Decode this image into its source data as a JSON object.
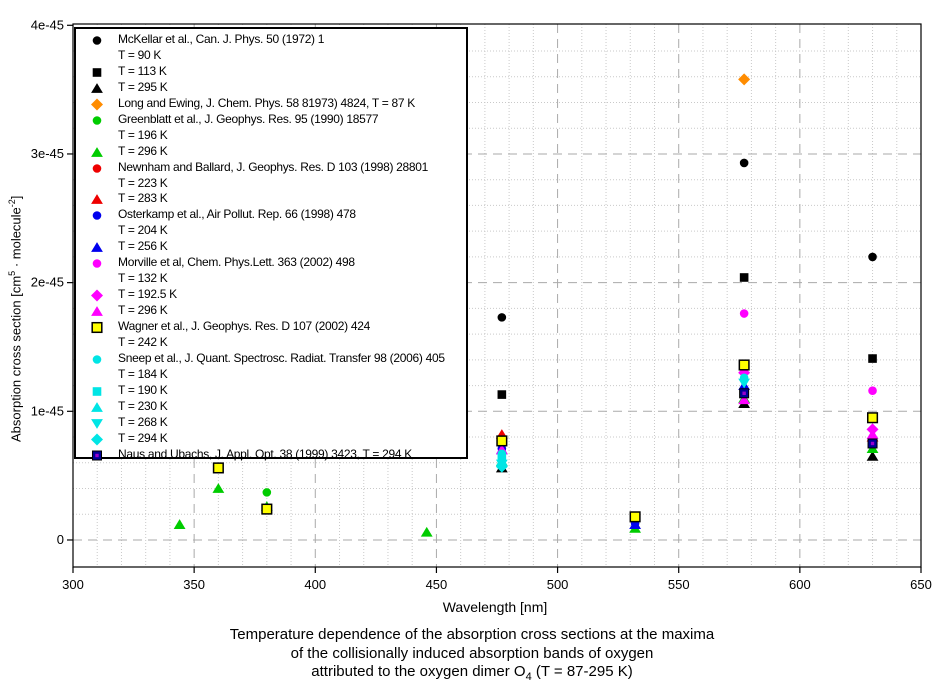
{
  "caption": {
    "line1": "Temperature dependence of the absorption cross sections at the maxima",
    "line2": "of the collisionally induced absorption bands of oxygen",
    "line3_prefix": "attributed to the oxygen dimer O",
    "line3_sub": "4",
    "line3_suffix": " (T = 87-295 K)"
  },
  "chart_data": {
    "type": "scatter",
    "title": "",
    "xlabel": "Wavelength [nm]",
    "ylabel": "Absorption cross section [cm5 · molecule-2]",
    "ylabel_parts": {
      "prefix": "Absorption cross section [cm",
      "sup1": "5",
      "mid": " · molecule",
      "sup2": "-2",
      "suffix": "]"
    },
    "x_unit": "nm",
    "y_unit_scale": "1e-45",
    "xlim": [
      300,
      650
    ],
    "ylim_e45": [
      -0.21,
      4.01
    ],
    "x_major_ticks": [
      300,
      350,
      400,
      450,
      500,
      550,
      600,
      650
    ],
    "x_minor_step": 10,
    "y_major_ticks": [
      {
        "v": 0,
        "label": "0"
      },
      {
        "v": 1,
        "label": "1e-45"
      },
      {
        "v": 2,
        "label": "2e-45"
      },
      {
        "v": 3,
        "label": "3e-45"
      },
      {
        "v": 4,
        "label": "4e-45"
      }
    ],
    "y_minor_step": 0.2,
    "grid": {
      "minor_color": "#c9c9c9",
      "major_color": "#aaaaaa"
    },
    "legend_position": "top-left",
    "series": [
      {
        "label": "McKellar et al., Can. J. Phys. 50 (1972) 1",
        "label2": "T = 90 K",
        "marker": "circle",
        "color": "#000000",
        "points": [
          [
            477,
            1.73
          ],
          [
            577,
            2.93
          ],
          [
            630,
            2.2
          ]
        ]
      },
      {
        "label": "T = 113 K",
        "marker": "square",
        "color": "#000000",
        "points": [
          [
            477,
            1.13
          ],
          [
            577,
            2.04
          ],
          [
            630,
            1.41
          ]
        ]
      },
      {
        "label": "T = 295 K",
        "marker": "triangle-up",
        "color": "#000000",
        "points": [
          [
            477,
            0.56
          ],
          [
            577,
            1.06
          ],
          [
            630,
            0.65
          ]
        ]
      },
      {
        "label": "Long and Ewing, J. Chem. Phys. 58 81973) 4824, T = 87 K",
        "marker": "diamond",
        "color": "#ff8c00",
        "points": [
          [
            577,
            3.58
          ]
        ]
      },
      {
        "label": "Greenblatt et al., J. Geophys. Res. 95 (1990) 18577",
        "label2": "T = 196 K",
        "marker": "circle",
        "color": "#00cc00",
        "points": [
          [
            380,
            0.37
          ]
        ]
      },
      {
        "label": "T = 296 K",
        "marker": "triangle-up",
        "color": "#00cc00",
        "points": [
          [
            344,
            0.12
          ],
          [
            360,
            0.4
          ],
          [
            380,
            0.26
          ],
          [
            446,
            0.06
          ],
          [
            477,
            0.61
          ],
          [
            532,
            0.09
          ],
          [
            577,
            1.1
          ],
          [
            630,
            0.71
          ]
        ]
      },
      {
        "label": "Newnham and Ballard, J. Geophys. Res. D 103 (1998) 28801",
        "label2": "T = 223 K",
        "marker": "circle",
        "color": "#ee0000",
        "points": [
          [
            577,
            1.17
          ],
          [
            630,
            0.78
          ]
        ]
      },
      {
        "label": "T = 283 K",
        "marker": "triangle-up",
        "color": "#ee0000",
        "points": [
          [
            477,
            0.82
          ],
          [
            630,
            0.8
          ]
        ]
      },
      {
        "label": "Osterkamp et al., Air Pollut. Rep. 66 (1998) 478",
        "label2": "T = 204 K",
        "marker": "circle",
        "color": "#0000ee",
        "points": [
          [
            477,
            0.71
          ],
          [
            532,
            0.13
          ]
        ]
      },
      {
        "label": "T = 256 K",
        "marker": "triangle-up",
        "color": "#0000ee",
        "points": [
          [
            477,
            0.7
          ],
          [
            532,
            0.12
          ],
          [
            577,
            1.2
          ]
        ]
      },
      {
        "label": "Morville et al, Chem. Phys.Lett. 363 (2002) 498",
        "label2": "T = 132 K",
        "marker": "circle",
        "color": "#ff00ff",
        "points": [
          [
            577,
            1.76
          ],
          [
            630,
            1.16
          ]
        ]
      },
      {
        "label": "T = 192.5 K",
        "marker": "diamond",
        "color": "#ff00ff",
        "points": [
          [
            577,
            1.3
          ],
          [
            630,
            0.86
          ]
        ]
      },
      {
        "label": "T = 296 K",
        "marker": "triangle-up",
        "color": "#ff00ff",
        "points": [
          [
            477,
            0.7
          ],
          [
            577,
            1.09
          ],
          [
            630,
            0.82
          ]
        ]
      },
      {
        "label": "Wagner et al., J. Geophys. Res. D 107 (2002) 424",
        "label2": "T = 242 K",
        "marker": "square-open",
        "color": "#ffff00",
        "points": [
          [
            360,
            0.56
          ],
          [
            380,
            0.24
          ],
          [
            477,
            0.77
          ],
          [
            532,
            0.18
          ],
          [
            577,
            1.36
          ],
          [
            630,
            0.95
          ]
        ]
      },
      {
        "label": "Sneep et al., J. Quant. Spectrosc. Radiat. Transfer 98 (2006) 405",
        "label2": "T = 184 K",
        "marker": "circle",
        "color": "#00e5e5",
        "points": [
          [
            477,
            0.67
          ],
          [
            577,
            1.26
          ]
        ]
      },
      {
        "label": "T = 190 K",
        "marker": "square",
        "color": "#00e5e5",
        "points": [
          [
            477,
            0.64
          ]
        ]
      },
      {
        "label": "T = 230 K",
        "marker": "triangle-up",
        "color": "#00e5e5",
        "points": [
          [
            477,
            0.61
          ]
        ]
      },
      {
        "label": "T = 268 K",
        "marker": "triangle-down",
        "color": "#00e5e5",
        "points": [
          [
            477,
            0.59
          ],
          [
            577,
            1.22
          ]
        ]
      },
      {
        "label": "T = 294 K",
        "marker": "diamond",
        "color": "#00e5e5",
        "points": [
          [
            477,
            0.57
          ]
        ]
      },
      {
        "label": "Naus and Ubachs, J. Appl. Opt. 38 (1999) 3423, T = 294 K",
        "marker": "square-dot",
        "color": "#000099",
        "color2": "#9900cc",
        "points": [
          [
            577,
            1.14
          ],
          [
            630,
            0.75
          ]
        ]
      }
    ]
  }
}
